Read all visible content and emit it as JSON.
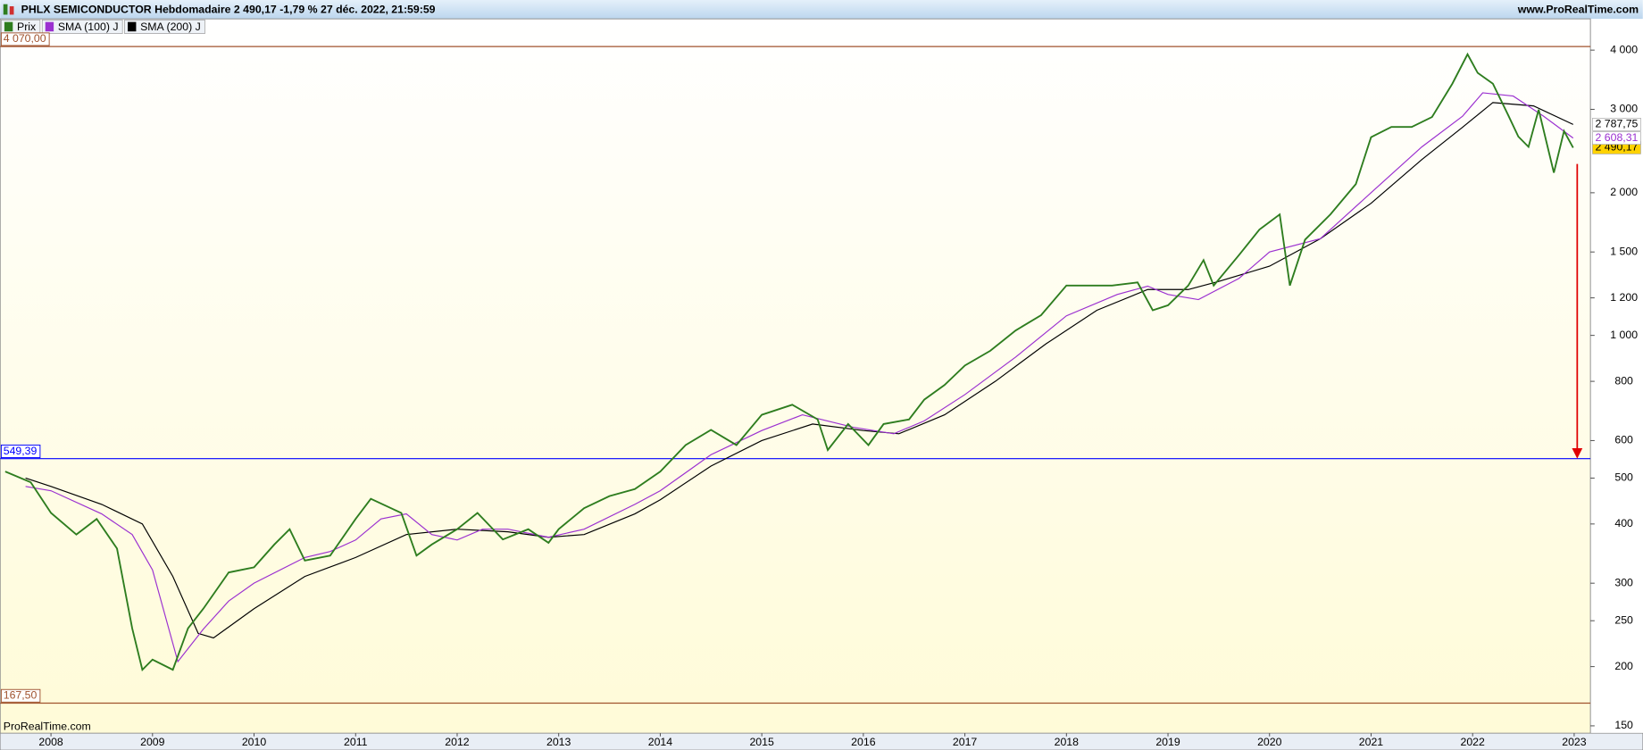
{
  "header": {
    "title": "PHLX SEMICONDUCTOR Hebdomadaire 2 490,17 -1,79 % 27 déc. 2022, 21:59:59",
    "site": "www.ProRealTime.com"
  },
  "footer": "ProRealTime.com",
  "chart_data": {
    "type": "line",
    "log_scale": true,
    "xlim": [
      2007.5,
      2023.16
    ],
    "ylim": [
      144.7,
      4656
    ],
    "xticks": [
      2008,
      2009,
      2010,
      2011,
      2012,
      2013,
      2014,
      2015,
      2016,
      2017,
      2018,
      2019,
      2020,
      2021,
      2022,
      2023
    ],
    "yticks": [
      150,
      200,
      250,
      300,
      400,
      500,
      600,
      800,
      {
        "value": 1000,
        "label": "1 000"
      },
      {
        "value": 1200,
        "label": "1 200"
      },
      {
        "value": 1500,
        "label": "1 500"
      },
      {
        "value": 2000,
        "label": "2 000"
      },
      {
        "value": 3000,
        "label": "3 000"
      },
      {
        "value": 4000,
        "label": "4 000"
      }
    ],
    "series": [
      {
        "name": "Prix",
        "color": "#2e7d1f",
        "end_label": "2 490,17",
        "end_label_fill": "#ffd200",
        "x": [
          2007.55,
          2007.8,
          2008.0,
          2008.25,
          2008.45,
          2008.65,
          2008.8,
          2008.9,
          2009.0,
          2009.2,
          2009.35,
          2009.5,
          2009.75,
          2010.0,
          2010.2,
          2010.35,
          2010.5,
          2010.75,
          2011.0,
          2011.15,
          2011.45,
          2011.6,
          2011.75,
          2012.0,
          2012.2,
          2012.45,
          2012.7,
          2012.9,
          2013.0,
          2013.25,
          2013.5,
          2013.75,
          2014.0,
          2014.25,
          2014.5,
          2014.75,
          2015.0,
          2015.3,
          2015.55,
          2015.65,
          2015.85,
          2016.05,
          2016.2,
          2016.45,
          2016.6,
          2016.8,
          2017.0,
          2017.25,
          2017.5,
          2017.75,
          2018.0,
          2018.2,
          2018.45,
          2018.7,
          2018.85,
          2019.0,
          2019.2,
          2019.35,
          2019.45,
          2019.7,
          2019.9,
          2020.1,
          2020.2,
          2020.35,
          2020.6,
          2020.85,
          2021.0,
          2021.2,
          2021.4,
          2021.6,
          2021.8,
          2021.95,
          2022.05,
          2022.2,
          2022.35,
          2022.45,
          2022.55,
          2022.65,
          2022.75,
          2022.8,
          2022.9,
          2022.99
        ],
        "values": [
          516,
          490,
          422,
          380,
          410,
          355,
          241,
          197,
          207,
          197,
          241,
          265,
          316,
          324,
          362,
          390,
          335,
          343,
          410,
          452,
          422,
          343,
          362,
          390,
          422,
          371,
          390,
          365,
          390,
          432,
          458,
          474,
          516,
          587,
          632,
          587,
          680,
          714,
          665,
          573,
          650,
          587,
          650,
          665,
          732,
          786,
          864,
          928,
          1024,
          1103,
          1274,
          1274,
          1274,
          1294,
          1130,
          1158,
          1274,
          1442,
          1274,
          1478,
          1672,
          1800,
          1274,
          1592,
          1800,
          2086,
          2620,
          2753,
          2753,
          2890,
          3398,
          3920,
          3580,
          3398,
          2917,
          2627,
          2500,
          2995,
          2440,
          2204,
          2700,
          2490.17
        ]
      },
      {
        "name": "SMA (100) J",
        "color": "#9b30d0",
        "end_label": "2 608,31",
        "end_label_fill": "#ffffff",
        "x": [
          2007.75,
          2008.0,
          2008.5,
          2008.8,
          2009.0,
          2009.25,
          2009.5,
          2009.75,
          2010.0,
          2010.5,
          2010.75,
          2011.0,
          2011.25,
          2011.5,
          2011.75,
          2012.0,
          2012.25,
          2012.5,
          2012.9,
          2013.25,
          2013.75,
          2014.0,
          2014.5,
          2015.0,
          2015.4,
          2015.9,
          2016.3,
          2016.6,
          2017.0,
          2017.5,
          2018.0,
          2018.5,
          2018.8,
          2019.0,
          2019.3,
          2019.7,
          2020.0,
          2020.5,
          2021.0,
          2021.5,
          2021.9,
          2022.1,
          2022.4,
          2022.7,
          2022.99
        ],
        "values": [
          480,
          470,
          420,
          380,
          320,
          205,
          240,
          275,
          300,
          340,
          350,
          370,
          410,
          420,
          380,
          370,
          390,
          390,
          375,
          390,
          440,
          470,
          560,
          630,
          680,
          640,
          620,
          660,
          750,
          900,
          1100,
          1220,
          1270,
          1220,
          1190,
          1320,
          1500,
          1600,
          2000,
          2500,
          2900,
          3250,
          3200,
          2900,
          2608.31
        ]
      },
      {
        "name": "SMA (200) J",
        "color": "#000000",
        "end_label": "2 787,75",
        "end_label_fill": "#ffffff",
        "x": [
          2007.75,
          2008.0,
          2008.5,
          2008.9,
          2009.2,
          2009.45,
          2009.6,
          2010.0,
          2010.5,
          2011.0,
          2011.5,
          2012.0,
          2012.5,
          2012.9,
          2013.25,
          2013.75,
          2014.0,
          2014.5,
          2015.0,
          2015.5,
          2016.0,
          2016.35,
          2016.8,
          2017.3,
          2017.8,
          2018.3,
          2018.8,
          2019.2,
          2019.5,
          2020.0,
          2020.5,
          2021.0,
          2021.5,
          2021.9,
          2022.2,
          2022.6,
          2022.99
        ],
        "values": [
          500,
          480,
          440,
          400,
          310,
          235,
          230,
          265,
          310,
          340,
          380,
          390,
          385,
          375,
          380,
          420,
          450,
          530,
          600,
          650,
          630,
          620,
          680,
          800,
          960,
          1130,
          1250,
          1250,
          1300,
          1400,
          1600,
          1900,
          2350,
          2750,
          3100,
          3050,
          2787.75
        ]
      }
    ],
    "hlines": [
      {
        "value": 4070,
        "label": "4 070,00",
        "color": "#a0522d"
      },
      {
        "value": 549.39,
        "label": "549,39",
        "color": "#0000ff"
      },
      {
        "value": 167.5,
        "label": "167,50",
        "color": "#a0522d"
      }
    ],
    "arrow": {
      "x": 2023.03,
      "y_from": 2300,
      "y_to": 549.39,
      "color": "#e00000"
    }
  }
}
